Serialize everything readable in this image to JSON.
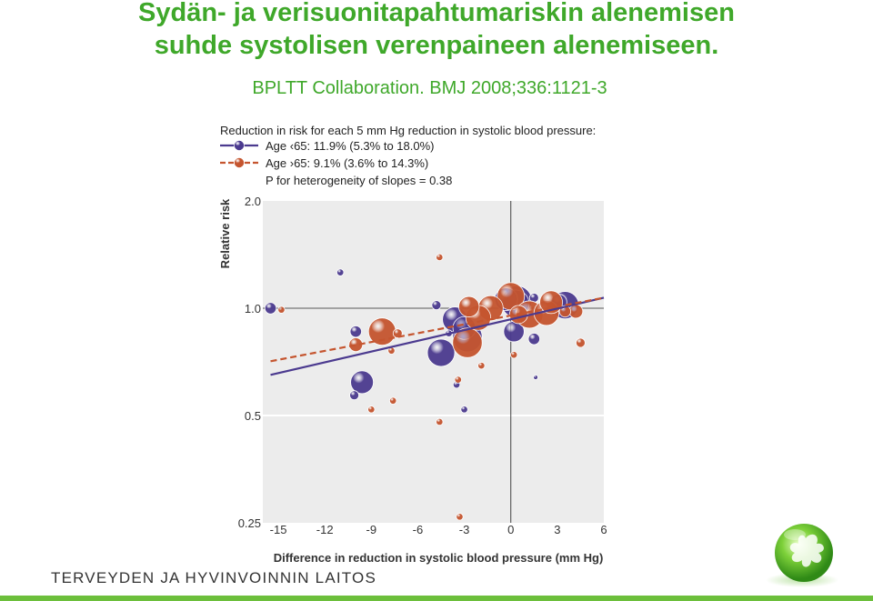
{
  "slide": {
    "title_line1": "Sydän- ja verisuonitapahtumariskin alenemisen",
    "title_line2": "suhde systolisen verenpaineen alenemiseen.",
    "citation": "BPLTT Collaboration. BMJ 2008;336:1121-3",
    "footer_org": "TERVEYDEN JA HYVINVOINNIN LAITOS"
  },
  "colors": {
    "title_green": "#3fa82a",
    "under65": "#4b3a8f",
    "over65": "#c5552f",
    "plot_bg": "#ececec",
    "footer_bar": "#6cbf3b"
  },
  "chart_data": {
    "type": "scatter",
    "legend_title": "Reduction in risk for each 5 mm Hg reduction in systolic blood pressure:",
    "xlabel": "Difference in reduction in systolic blood pressure (mm Hg)",
    "ylabel": "Relative risk",
    "xlim": [
      -16,
      6
    ],
    "ylim": [
      0.25,
      2.0
    ],
    "y_scale": "log",
    "x_ticks": [
      -15,
      -12,
      -9,
      -6,
      -3,
      0,
      3,
      6
    ],
    "x_tick_labels": [
      "-15",
      "-12",
      "-9",
      "-6",
      "-3",
      "0",
      "3",
      "6"
    ],
    "y_ticks": [
      0.25,
      0.5,
      1.0,
      2.0
    ],
    "y_tick_labels": [
      "0.25",
      "0.5",
      "1.0",
      "2.0"
    ],
    "grid": "horizontal",
    "reference_lines": {
      "x": 0,
      "y": 1.0
    },
    "heterogeneity_note": "P for heterogeneity of slopes = 0.38",
    "series": [
      {
        "name": "Age ‹65: 11.9% (5.3% to 18.0%)",
        "color": "#4b3a8f",
        "line_style": "solid",
        "regression": {
          "x": [
            -15.5,
            6
          ],
          "y": [
            0.65,
            1.07
          ]
        },
        "points": [
          {
            "x": -15.5,
            "y": 1.0,
            "size": 5
          },
          {
            "x": -11,
            "y": 1.26,
            "size": 3
          },
          {
            "x": -10,
            "y": 0.86,
            "size": 5
          },
          {
            "x": -9.6,
            "y": 0.62,
            "size": 10
          },
          {
            "x": -4.8,
            "y": 1.02,
            "size": 4
          },
          {
            "x": -4.5,
            "y": 0.75,
            "size": 12
          },
          {
            "x": -4.0,
            "y": 0.85,
            "size": 3
          },
          {
            "x": -3.6,
            "y": 0.93,
            "size": 11
          },
          {
            "x": -3.0,
            "y": 0.88,
            "size": 10
          },
          {
            "x": -2.8,
            "y": 0.83,
            "size": 13
          },
          {
            "x": -3.5,
            "y": 0.61,
            "size": 3
          },
          {
            "x": -3.0,
            "y": 0.52,
            "size": 3
          },
          {
            "x": -0.3,
            "y": 1.06,
            "size": 10
          },
          {
            "x": 0.4,
            "y": 1.05,
            "size": 13
          },
          {
            "x": 0.3,
            "y": 1.03,
            "size": 12
          },
          {
            "x": 1.5,
            "y": 1.07,
            "size": 4
          },
          {
            "x": 3.1,
            "y": 1.04,
            "size": 7
          },
          {
            "x": 3.5,
            "y": 1.02,
            "size": 12
          },
          {
            "x": 0.2,
            "y": 0.86,
            "size": 9
          },
          {
            "x": 1.5,
            "y": 0.82,
            "size": 5
          },
          {
            "x": -10.1,
            "y": 0.57,
            "size": 4
          },
          {
            "x": 1.6,
            "y": 0.64,
            "size": 2
          }
        ]
      },
      {
        "name": "Age ›65: 9.1% (3.6% to 14.3%)",
        "color": "#c5552f",
        "line_style": "dashed",
        "regression": {
          "x": [
            -15.5,
            6
          ],
          "y": [
            0.71,
            1.07
          ]
        },
        "points": [
          {
            "x": -14.8,
            "y": 0.99,
            "size": 3
          },
          {
            "x": -10,
            "y": 0.79,
            "size": 6
          },
          {
            "x": -8.3,
            "y": 0.86,
            "size": 12
          },
          {
            "x": -7.3,
            "y": 0.85,
            "size": 4
          },
          {
            "x": -7.7,
            "y": 0.76,
            "size": 3
          },
          {
            "x": -7.6,
            "y": 0.55,
            "size": 3
          },
          {
            "x": -9.0,
            "y": 0.52,
            "size": 3
          },
          {
            "x": -4.6,
            "y": 1.39,
            "size": 3
          },
          {
            "x": -2.7,
            "y": 1.01,
            "size": 9
          },
          {
            "x": -1.3,
            "y": 1.0,
            "size": 11
          },
          {
            "x": -2.1,
            "y": 0.94,
            "size": 11
          },
          {
            "x": -2.8,
            "y": 0.8,
            "size": 13
          },
          {
            "x": -1.9,
            "y": 0.69,
            "size": 3
          },
          {
            "x": -3.4,
            "y": 0.63,
            "size": 3
          },
          {
            "x": -4.6,
            "y": 0.48,
            "size": 3
          },
          {
            "x": -3.3,
            "y": 0.26,
            "size": 3
          },
          {
            "x": 0,
            "y": 1.08,
            "size": 12
          },
          {
            "x": 0.5,
            "y": 0.96,
            "size": 8
          },
          {
            "x": 1.2,
            "y": 0.96,
            "size": 12
          },
          {
            "x": 2.3,
            "y": 0.97,
            "size": 11
          },
          {
            "x": 2.6,
            "y": 1.04,
            "size": 10
          },
          {
            "x": 4.2,
            "y": 0.98,
            "size": 6
          },
          {
            "x": 3.5,
            "y": 0.98,
            "size": 5
          },
          {
            "x": 4.5,
            "y": 0.8,
            "size": 4
          },
          {
            "x": 0.2,
            "y": 0.74,
            "size": 3
          }
        ]
      }
    ]
  }
}
